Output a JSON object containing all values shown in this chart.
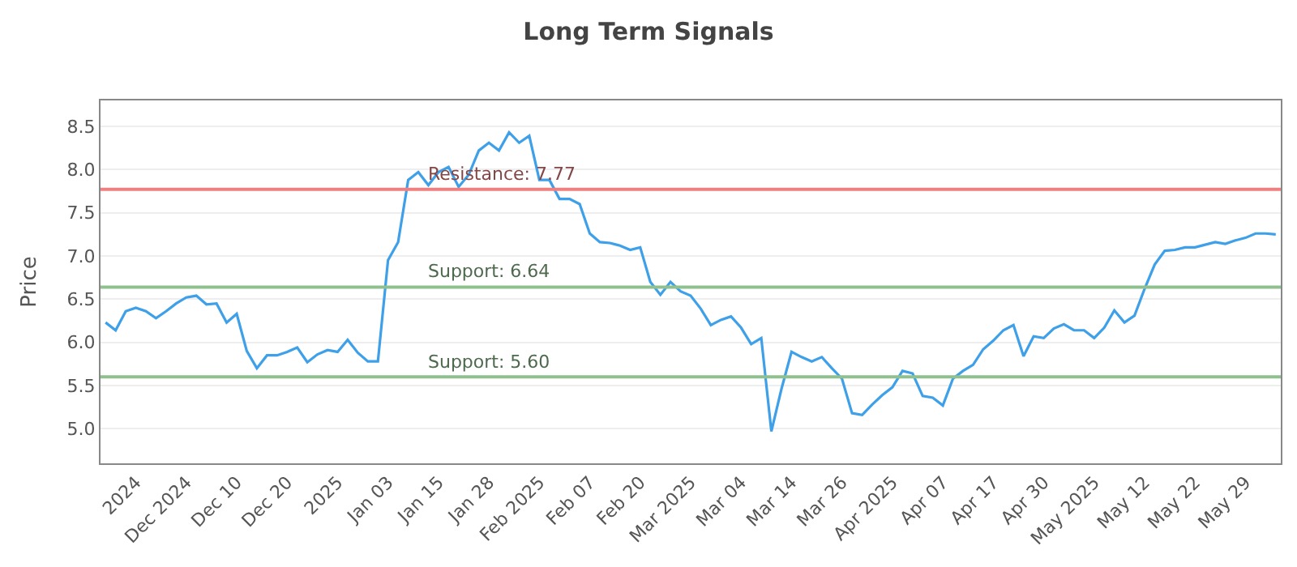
{
  "chart_data": {
    "type": "line",
    "title": "Long Term Signals",
    "ylabel": "Price",
    "categories": [
      null,
      null,
      null,
      "2024",
      null,
      null,
      null,
      null,
      "Dec 2024",
      null,
      null,
      null,
      null,
      "Dec 10",
      null,
      null,
      null,
      null,
      "Dec 20",
      null,
      null,
      null,
      null,
      "2025",
      null,
      null,
      null,
      null,
      "Jan 03",
      null,
      null,
      null,
      null,
      "Jan 15",
      null,
      null,
      null,
      null,
      "Jan 28",
      null,
      null,
      null,
      null,
      "Feb 2025",
      null,
      null,
      null,
      null,
      "Feb 07",
      null,
      null,
      null,
      null,
      "Feb 20",
      null,
      null,
      null,
      null,
      "Mar 2025",
      null,
      null,
      null,
      null,
      "Mar 04",
      null,
      null,
      null,
      null,
      "Mar 14",
      null,
      null,
      null,
      null,
      "Mar 26",
      null,
      null,
      null,
      null,
      "Apr 2025",
      null,
      null,
      null,
      null,
      "Apr 07",
      null,
      null,
      null,
      null,
      "Apr 17",
      null,
      null,
      null,
      null,
      "Apr 30",
      null,
      null,
      null,
      null,
      "May 2025",
      null,
      null,
      null,
      null,
      "May 12",
      null,
      null,
      null,
      null,
      "May 22",
      null,
      null,
      null,
      null,
      "May 29",
      null,
      null,
      null
    ],
    "series": [
      {
        "color": "#3ea0e8",
        "values": [
          6.23,
          6.14,
          6.36,
          6.4,
          6.36,
          6.28,
          6.36,
          6.45,
          6.52,
          6.54,
          6.44,
          6.45,
          6.23,
          6.33,
          5.9,
          5.7,
          5.85,
          5.85,
          5.89,
          5.94,
          5.77,
          5.86,
          5.91,
          5.89,
          6.03,
          5.88,
          5.78,
          5.78,
          6.95,
          7.16,
          7.88,
          7.97,
          7.82,
          7.97,
          8.03,
          7.8,
          7.94,
          8.22,
          8.31,
          8.22,
          8.43,
          8.31,
          8.39,
          7.88,
          7.88,
          7.66,
          7.66,
          7.6,
          7.26,
          7.16,
          7.15,
          7.12,
          7.07,
          7.1,
          6.7,
          6.55,
          6.7,
          6.59,
          6.54,
          6.39,
          6.2,
          6.26,
          6.3,
          6.17,
          5.98,
          6.05,
          4.97,
          5.46,
          5.89,
          5.83,
          5.78,
          5.83,
          5.7,
          5.58,
          5.18,
          5.16,
          5.28,
          5.39,
          5.48,
          5.67,
          5.64,
          5.38,
          5.36,
          5.27,
          5.58,
          5.67,
          5.74,
          5.92,
          6.02,
          6.14,
          6.2,
          5.84,
          6.07,
          6.05,
          6.16,
          6.21,
          6.14,
          6.14,
          6.05,
          6.17,
          6.37,
          6.23,
          6.31,
          6.62,
          6.9,
          7.06,
          7.07,
          7.1,
          7.1,
          7.13,
          7.16,
          7.14,
          7.18,
          7.21,
          7.26,
          7.26,
          7.25
        ]
      }
    ],
    "ylim": [
      4.6,
      8.8
    ],
    "yticks": [
      {
        "value": 5,
        "label": "5.0"
      },
      5.5,
      {
        "value": 6,
        "label": "6.0"
      },
      6.5,
      {
        "value": 7,
        "label": "7.0"
      },
      7.5,
      {
        "value": 8,
        "label": "8.0"
      },
      8.5
    ],
    "grid": "y",
    "legend": false,
    "marker": "none",
    "line_style": "solid",
    "ref_lines": [
      {
        "axis": "y",
        "value": 7.77,
        "label": "Resistance: 7.77",
        "color": "#f08080"
      },
      {
        "axis": "y",
        "value": 6.64,
        "label": "Support: 6.64",
        "color": "#8fc18f"
      },
      {
        "axis": "y",
        "value": 5.6,
        "label": "Support: 5.60",
        "color": "#8fc18f"
      }
    ]
  }
}
